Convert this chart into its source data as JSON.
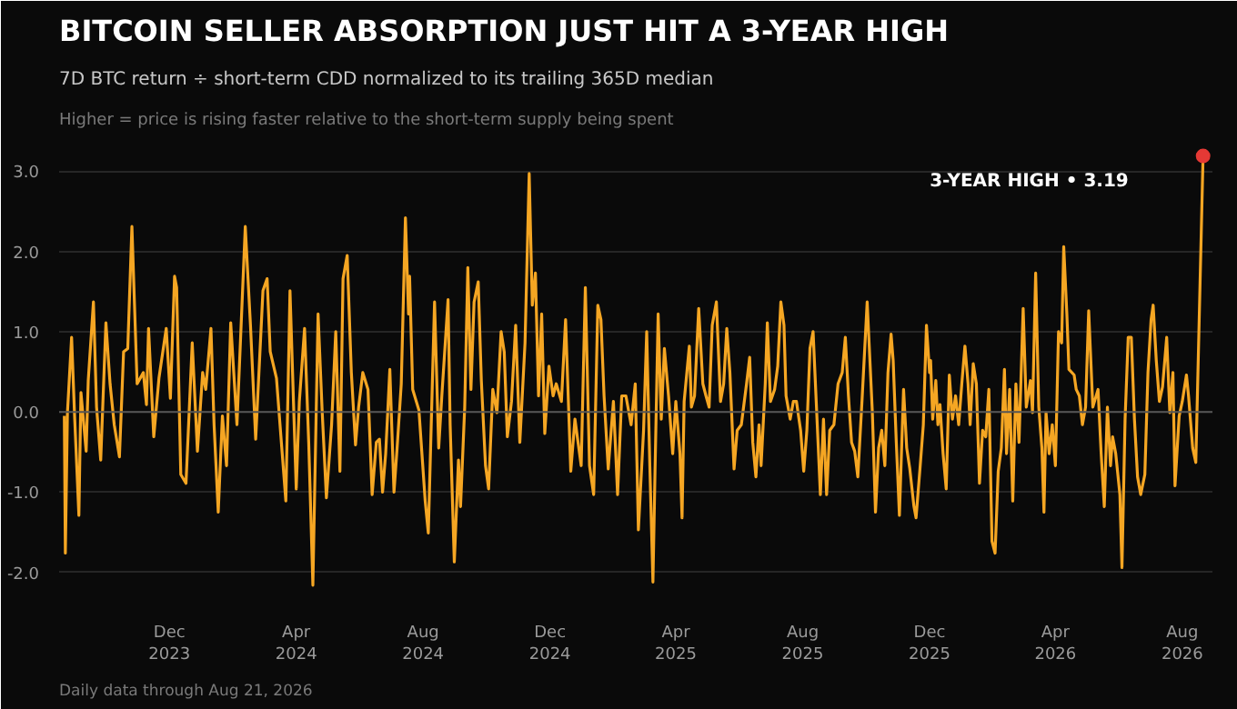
{
  "chart_data": {
    "type": "line",
    "title": "BITCOIN SELLER ABSORPTION JUST HIT A 3-YEAR HIGH",
    "subtitle": "7D BTC return ÷ short-term CDD normalized to its trailing 365D median",
    "annotations": [
      "Higher = price is rising faster relative to the short-term supply being spent",
      "Daily data through Aug 21, 2026",
      "3-YEAR HIGH  •  3.19"
    ],
    "xlim": [
      "2023-08-17",
      "2026-08-30"
    ],
    "ylim": [
      -2.4,
      3.4
    ],
    "xticks": [
      {
        "value": "2023-12-01",
        "label": "Dec 2023"
      },
      {
        "value": "2024-04-01",
        "label": "Apr 2024"
      },
      {
        "value": "2024-08-01",
        "label": "Aug 2024"
      },
      {
        "value": "2024-12-01",
        "label": "Dec 2024"
      },
      {
        "value": "2025-04-01",
        "label": "Apr 2025"
      },
      {
        "value": "2025-08-01",
        "label": "Aug 2025"
      },
      {
        "value": "2025-12-01",
        "label": "Dec 2025"
      },
      {
        "value": "2026-04-01",
        "label": "Apr 2026"
      },
      {
        "value": "2026-08-01",
        "label": "Aug 2026"
      }
    ],
    "yticks": [
      {
        "value": -2,
        "label": "-2.0"
      },
      {
        "value": -1,
        "label": "-1.0"
      },
      {
        "value": 0,
        "label": "0.0"
      },
      {
        "value": 1,
        "label": "1.0"
      },
      {
        "value": 2,
        "label": "2.0"
      },
      {
        "value": 3,
        "label": "3.0"
      }
    ],
    "grid": "y",
    "line_style": "solid",
    "ref_lines": [
      {
        "axis": "y",
        "value": 0,
        "label": null,
        "color": "#555555"
      }
    ],
    "series": [
      {
        "color": "#f5a623",
        "x": [
          "2023-08-22",
          "2023-08-23",
          "2023-08-25",
          "2023-08-29",
          "2023-09-01",
          "2023-09-05",
          "2023-09-07",
          "2023-09-12",
          "2023-09-14",
          "2023-09-19",
          "2023-09-22",
          "2023-09-26",
          "2023-10-01",
          "2023-10-05",
          "2023-10-09",
          "2023-10-14",
          "2023-10-18",
          "2023-10-22",
          "2023-10-26",
          "2023-10-31",
          "2023-11-06",
          "2023-11-09",
          "2023-11-11",
          "2023-11-16",
          "2023-11-21",
          "2023-11-28",
          "2023-12-02",
          "2023-12-06",
          "2023-12-08",
          "2023-12-12",
          "2023-12-17",
          "2023-12-23",
          "2023-12-28",
          "2024-01-02",
          "2024-01-05",
          "2024-01-10",
          "2024-01-13",
          "2024-01-17",
          "2024-01-21",
          "2024-01-25",
          "2024-01-29",
          "2024-02-04",
          "2024-02-12",
          "2024-02-17",
          "2024-02-22",
          "2024-02-29",
          "2024-03-04",
          "2024-03-07",
          "2024-03-13",
          "2024-03-16",
          "2024-03-22",
          "2024-03-26",
          "2024-04-01",
          "2024-04-04",
          "2024-04-09",
          "2024-04-13",
          "2024-04-17",
          "2024-04-22",
          "2024-04-26",
          "2024-04-30",
          "2024-05-05",
          "2024-05-09",
          "2024-05-13",
          "2024-05-16",
          "2024-05-20",
          "2024-05-24",
          "2024-05-28",
          "2024-05-31",
          "2024-06-04",
          "2024-06-09",
          "2024-06-13",
          "2024-06-17",
          "2024-06-20",
          "2024-06-23",
          "2024-06-26",
          "2024-06-30",
          "2024-07-04",
          "2024-07-07",
          "2024-07-11",
          "2024-07-15",
          "2024-07-18",
          "2024-07-19",
          "2024-07-22",
          "2024-07-28",
          "2024-08-03",
          "2024-08-06",
          "2024-08-12",
          "2024-08-16",
          "2024-08-19",
          "2024-08-25",
          "2024-08-27",
          "2024-08-31",
          "2024-09-04",
          "2024-09-06",
          "2024-09-10",
          "2024-09-13",
          "2024-09-16",
          "2024-09-19",
          "2024-09-23",
          "2024-09-26",
          "2024-09-30",
          "2024-10-03",
          "2024-10-07",
          "2024-10-11",
          "2024-10-15",
          "2024-10-18",
          "2024-10-21",
          "2024-10-25",
          "2024-10-29",
          "2024-11-02",
          "2024-11-07",
          "2024-11-11",
          "2024-11-14",
          "2024-11-17",
          "2024-11-20",
          "2024-11-23",
          "2024-11-26",
          "2024-11-30",
          "2024-12-04",
          "2024-12-07",
          "2024-12-12",
          "2024-12-16",
          "2024-12-21",
          "2024-12-25",
          "2024-12-28",
          "2024-12-31",
          "2025-01-04",
          "2025-01-08",
          "2025-01-12",
          "2025-01-16",
          "2025-01-19",
          "2025-01-22",
          "2025-01-26",
          "2025-01-31",
          "2025-02-04",
          "2025-02-08",
          "2025-02-12",
          "2025-02-17",
          "2025-02-21",
          "2025-02-24",
          "2025-03-01",
          "2025-03-04",
          "2025-03-07",
          "2025-03-10",
          "2025-03-12",
          "2025-03-15",
          "2025-03-18",
          "2025-03-21",
          "2025-03-25",
          "2025-03-29",
          "2025-04-01",
          "2025-04-05",
          "2025-04-07",
          "2025-04-09",
          "2025-04-14",
          "2025-04-16",
          "2025-04-19",
          "2025-04-23",
          "2025-04-27",
          "2025-04-30",
          "2025-05-03",
          "2025-05-06",
          "2025-05-10",
          "2025-05-14",
          "2025-05-17",
          "2025-05-20",
          "2025-05-23",
          "2025-05-27",
          "2025-05-30",
          "2025-06-03",
          "2025-06-08",
          "2025-06-11",
          "2025-06-14",
          "2025-06-17",
          "2025-06-20",
          "2025-06-22",
          "2025-06-26",
          "2025-06-28",
          "2025-07-01",
          "2025-07-05",
          "2025-07-08",
          "2025-07-11",
          "2025-07-14",
          "2025-07-16",
          "2025-07-20",
          "2025-07-23",
          "2025-07-26",
          "2025-07-30",
          "2025-08-02",
          "2025-08-05",
          "2025-08-08",
          "2025-08-11",
          "2025-08-14",
          "2025-08-18",
          "2025-08-21",
          "2025-08-24",
          "2025-08-27",
          "2025-08-31",
          "2025-09-04",
          "2025-09-08",
          "2025-09-11",
          "2025-09-14",
          "2025-09-17",
          "2025-09-20",
          "2025-09-23",
          "2025-09-27",
          "2025-10-02",
          "2025-10-07",
          "2025-10-10",
          "2025-10-13",
          "2025-10-16",
          "2025-10-19",
          "2025-10-22",
          "2025-10-25",
          "2025-10-27",
          "2025-10-30",
          "2025-11-02",
          "2025-11-06",
          "2025-11-09",
          "2025-11-12",
          "2025-11-16",
          "2025-11-18",
          "2025-11-22",
          "2025-11-25",
          "2025-11-28",
          "2025-12-01",
          "2025-12-02",
          "2025-12-04",
          "2025-12-07",
          "2025-12-09",
          "2025-12-11",
          "2025-12-14",
          "2025-12-17",
          "2025-12-20",
          "2025-12-23",
          "2025-12-26",
          "2025-12-29",
          "2026-01-01",
          "2026-01-04",
          "2026-01-07",
          "2026-01-09",
          "2026-01-12",
          "2026-01-15",
          "2026-01-18",
          "2026-01-21",
          "2026-01-24",
          "2026-01-27",
          "2026-01-30",
          "2026-02-02",
          "2026-02-05",
          "2026-02-08",
          "2026-02-11",
          "2026-02-13",
          "2026-02-16",
          "2026-02-19",
          "2026-02-22",
          "2026-02-25",
          "2026-03-01",
          "2026-03-04",
          "2026-03-08",
          "2026-03-10",
          "2026-03-13",
          "2026-03-16",
          "2026-03-19",
          "2026-03-21",
          "2026-03-23",
          "2026-03-26",
          "2026-03-29",
          "2026-04-01",
          "2026-04-04",
          "2026-04-07",
          "2026-04-09",
          "2026-04-12",
          "2026-04-14",
          "2026-04-19",
          "2026-04-21",
          "2026-04-24",
          "2026-04-27",
          "2026-04-30",
          "2026-05-03",
          "2026-05-07",
          "2026-05-12",
          "2026-05-15",
          "2026-05-18",
          "2026-05-21",
          "2026-05-24",
          "2026-05-26",
          "2026-05-29",
          "2026-06-02",
          "2026-06-04",
          "2026-06-07",
          "2026-06-10",
          "2026-06-13",
          "2026-06-16",
          "2026-06-19",
          "2026-06-22",
          "2026-06-26",
          "2026-06-29",
          "2026-07-02",
          "2026-07-04",
          "2026-07-07",
          "2026-07-10",
          "2026-07-13",
          "2026-07-17",
          "2026-07-20",
          "2026-07-23",
          "2026-07-25",
          "2026-07-29",
          "2026-08-01",
          "2026-08-05",
          "2026-08-07",
          "2026-08-11",
          "2026-08-14",
          "2026-08-21"
        ],
        "values": [
          -0.05,
          -1.76,
          -0.01,
          0.93,
          -0.09,
          -1.29,
          0.24,
          -0.49,
          0.39,
          1.37,
          0.06,
          -0.6,
          1.11,
          0.35,
          -0.16,
          -0.56,
          0.75,
          0.79,
          2.31,
          0.35,
          0.49,
          0.09,
          1.04,
          -0.31,
          0.42,
          1.04,
          0.17,
          1.69,
          1.55,
          -0.78,
          -0.89,
          0.86,
          -0.49,
          0.49,
          0.28,
          1.04,
          -0.16,
          -1.25,
          -0.05,
          -0.67,
          1.11,
          -0.16,
          2.31,
          1.08,
          -0.34,
          1.51,
          1.66,
          0.75,
          0.42,
          -0.09,
          -1.11,
          1.51,
          -0.96,
          0.13,
          1.04,
          -0.38,
          -2.16,
          1.22,
          -0.01,
          -1.07,
          -0.16,
          1.0,
          -0.74,
          1.66,
          1.95,
          0.49,
          -0.41,
          0.06,
          0.49,
          0.28,
          -1.03,
          -0.38,
          -0.34,
          -1.0,
          -0.52,
          0.53,
          -1.0,
          -0.45,
          0.35,
          2.42,
          1.22,
          1.69,
          0.28,
          0.02,
          -1.11,
          -1.51,
          1.37,
          -0.45,
          0.2,
          1.4,
          -0.16,
          -1.87,
          -0.6,
          -1.18,
          0.06,
          1.8,
          0.28,
          1.37,
          1.62,
          0.39,
          -0.67,
          -0.96,
          0.28,
          -0.01,
          1.0,
          0.75,
          -0.31,
          0.13,
          1.08,
          -0.38,
          0.86,
          2.97,
          1.33,
          1.73,
          0.2,
          1.22,
          -0.27,
          0.57,
          0.2,
          0.35,
          0.13,
          1.15,
          -0.74,
          -0.09,
          -0.38,
          -0.67,
          1.55,
          -0.67,
          -1.03,
          1.33,
          1.15,
          0.2,
          -0.71,
          0.13,
          -1.03,
          0.2,
          0.2,
          -0.16,
          0.35,
          -1.47,
          -0.23,
          1.0,
          -0.67,
          -2.12,
          -0.74,
          1.22,
          -0.09,
          0.79,
          0.2,
          -0.52,
          0.13,
          -0.52,
          -1.32,
          0.13,
          0.82,
          0.06,
          0.2,
          1.29,
          0.35,
          0.2,
          0.06,
          1.08,
          1.37,
          0.13,
          0.35,
          1.04,
          0.49,
          -0.71,
          -0.23,
          -0.16,
          0.35,
          0.68,
          -0.38,
          -0.81,
          -0.16,
          -0.67,
          0.35,
          1.11,
          0.13,
          0.28,
          0.57,
          1.37,
          1.08,
          0.2,
          -0.09,
          0.13,
          0.13,
          -0.23,
          -0.74,
          -0.23,
          0.79,
          1.0,
          0.13,
          -1.03,
          -0.09,
          -1.03,
          -0.23,
          -0.16,
          0.35,
          0.49,
          0.93,
          0.2,
          -0.38,
          -0.49,
          -0.81,
          0.13,
          1.37,
          -0.01,
          -1.25,
          -0.45,
          -0.23,
          -0.67,
          0.49,
          0.97,
          0.64,
          -0.38,
          -1.29,
          0.28,
          -0.45,
          -0.71,
          -1.18,
          -1.32,
          -0.67,
          -0.16,
          1.08,
          0.49,
          0.64,
          -0.09,
          0.39,
          -0.16,
          0.09,
          -0.52,
          -0.96,
          0.46,
          -0.09,
          0.2,
          -0.16,
          0.35,
          0.82,
          0.35,
          -0.16,
          0.6,
          0.35,
          -0.89,
          -0.23,
          -0.31,
          0.28,
          -1.61,
          -1.76,
          -0.74,
          -0.45,
          0.53,
          -0.52,
          0.28,
          -1.11,
          0.35,
          -0.38,
          1.29,
          0.06,
          0.39,
          -0.01,
          1.73,
          0.06,
          -0.45,
          -1.25,
          -0.01,
          -0.52,
          -0.16,
          -0.67,
          1.0,
          0.86,
          2.06,
          1.22,
          0.53,
          0.46,
          0.28,
          0.2,
          -0.16,
          0.06,
          1.26,
          0.06,
          0.28,
          -0.52,
          -1.18,
          0.06,
          -0.67,
          -0.31,
          -0.52,
          -1.03,
          -1.94,
          -0.09,
          0.93,
          0.93,
          -0.09,
          -0.81,
          -1.03,
          -0.78,
          0.49,
          1.15,
          1.33,
          0.64,
          0.13,
          0.31,
          0.93,
          -0.01,
          0.49,
          -0.92,
          -0.05,
          0.13,
          0.46,
          0.2,
          -0.45,
          -0.63,
          3.19
        ]
      },
      {
        "type": "scatter",
        "color": "#e53935",
        "marker": "circle",
        "x": [
          "2026-08-21"
        ],
        "values": [
          3.19
        ]
      }
    ]
  }
}
